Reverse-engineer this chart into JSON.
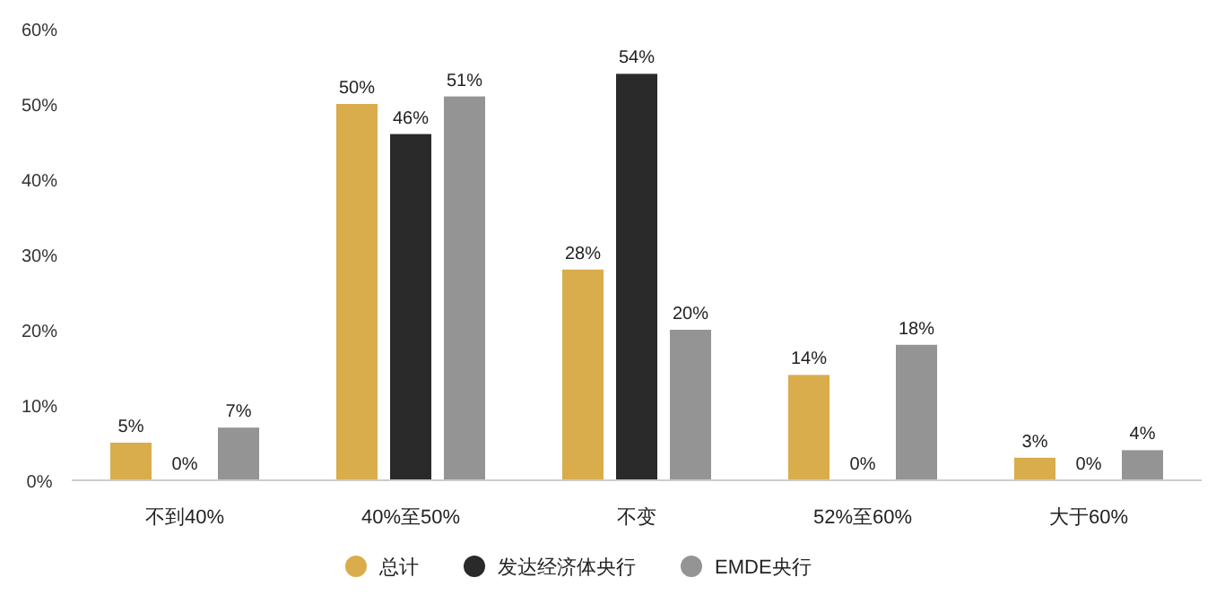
{
  "chart_data": {
    "type": "bar",
    "categories": [
      "不到40%",
      "40%至50%",
      "不变",
      "52%至60%",
      "大于60%"
    ],
    "series": [
      {
        "name": "总计",
        "color": "#d9ac4c",
        "values": [
          5,
          50,
          28,
          14,
          3
        ],
        "value_labels": [
          "5%",
          "50%",
          "28%",
          "14%",
          "3%"
        ]
      },
      {
        "name": "发达经济体央行",
        "color": "#2a2a2a",
        "values": [
          0,
          46,
          54,
          0,
          0
        ],
        "value_labels": [
          "0%",
          "46%",
          "54%",
          "0%",
          "0%"
        ]
      },
      {
        "name": "EMDE央行",
        "color": "#949494",
        "values": [
          7,
          51,
          20,
          18,
          4
        ],
        "value_labels": [
          "7%",
          "51%",
          "20%",
          "18%",
          "4%"
        ]
      }
    ],
    "ylim": [
      0,
      60
    ],
    "yticks": [
      {
        "value": 0,
        "label": "0%"
      },
      {
        "value": 10,
        "label": "10%"
      },
      {
        "value": 20,
        "label": "20%"
      },
      {
        "value": 30,
        "label": "30%"
      },
      {
        "value": 40,
        "label": "40%"
      },
      {
        "value": 50,
        "label": "50%"
      },
      {
        "value": 60,
        "label": "60%"
      }
    ],
    "grid": false,
    "legend": "bottom"
  }
}
